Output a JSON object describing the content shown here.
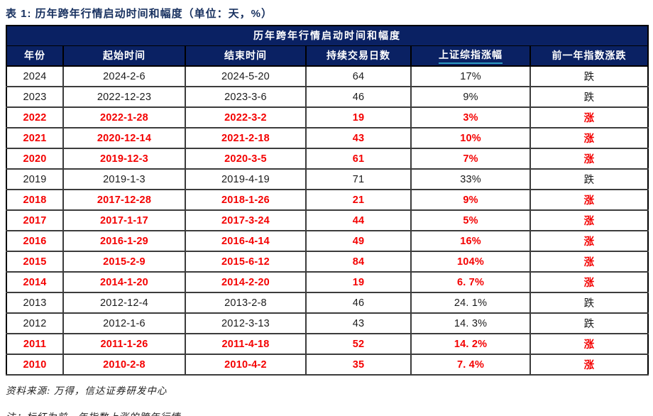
{
  "page_title": "表 1: 历年跨年行情启动时间和幅度（单位：天，%）",
  "table": {
    "caption": "历年跨年行情启动时间和幅度",
    "columns": [
      "年份",
      "起始时间",
      "结束时间",
      "持续交易日数",
      "上证综指涨幅",
      "前一年指数涨跌"
    ],
    "underlined_column_index": 4,
    "rows": [
      {
        "year": "2024",
        "start": "2024-2-6",
        "end": "2024-5-20",
        "days": "64",
        "gain": "17%",
        "prev": "跌",
        "red": false
      },
      {
        "year": "2023",
        "start": "2022-12-23",
        "end": "2023-3-6",
        "days": "46",
        "gain": "9%",
        "prev": "跌",
        "red": false
      },
      {
        "year": "2022",
        "start": "2022-1-28",
        "end": "2022-3-2",
        "days": "19",
        "gain": "3%",
        "prev": "涨",
        "red": true
      },
      {
        "year": "2021",
        "start": "2020-12-14",
        "end": "2021-2-18",
        "days": "43",
        "gain": "10%",
        "prev": "涨",
        "red": true
      },
      {
        "year": "2020",
        "start": "2019-12-3",
        "end": "2020-3-5",
        "days": "61",
        "gain": "7%",
        "prev": "涨",
        "red": true
      },
      {
        "year": "2019",
        "start": "2019-1-3",
        "end": "2019-4-19",
        "days": "71",
        "gain": "33%",
        "prev": "跌",
        "red": false
      },
      {
        "year": "2018",
        "start": "2017-12-28",
        "end": "2018-1-26",
        "days": "21",
        "gain": "9%",
        "prev": "涨",
        "red": true
      },
      {
        "year": "2017",
        "start": "2017-1-17",
        "end": "2017-3-24",
        "days": "44",
        "gain": "5%",
        "prev": "涨",
        "red": true
      },
      {
        "year": "2016",
        "start": "2016-1-29",
        "end": "2016-4-14",
        "days": "49",
        "gain": "16%",
        "prev": "涨",
        "red": true
      },
      {
        "year": "2015",
        "start": "2015-2-9",
        "end": "2015-6-12",
        "days": "84",
        "gain": "104%",
        "prev": "涨",
        "red": true
      },
      {
        "year": "2014",
        "start": "2014-1-20",
        "end": "2014-2-20",
        "days": "19",
        "gain": "6. 7%",
        "prev": "涨",
        "red": true
      },
      {
        "year": "2013",
        "start": "2012-12-4",
        "end": "2013-2-8",
        "days": "46",
        "gain": "24. 1%",
        "prev": "跌",
        "red": false
      },
      {
        "year": "2012",
        "start": "2012-1-6",
        "end": "2012-3-13",
        "days": "43",
        "gain": "14. 3%",
        "prev": "跌",
        "red": false
      },
      {
        "year": "2011",
        "start": "2011-1-26",
        "end": "2011-4-18",
        "days": "52",
        "gain": "14. 2%",
        "prev": "涨",
        "red": true
      },
      {
        "year": "2010",
        "start": "2010-2-8",
        "end": "2010-4-2",
        "days": "35",
        "gain": "7. 4%",
        "prev": "涨",
        "red": true
      }
    ]
  },
  "footer": {
    "source": "资料来源: 万得，信达证券研发中心",
    "note": "注：标红为前一年指数上涨的跨年行情。"
  },
  "colors": {
    "header_bg": "#0A2163",
    "title_text": "#17305F",
    "red_text": "#F40000",
    "underline": "#2D9BC1"
  }
}
